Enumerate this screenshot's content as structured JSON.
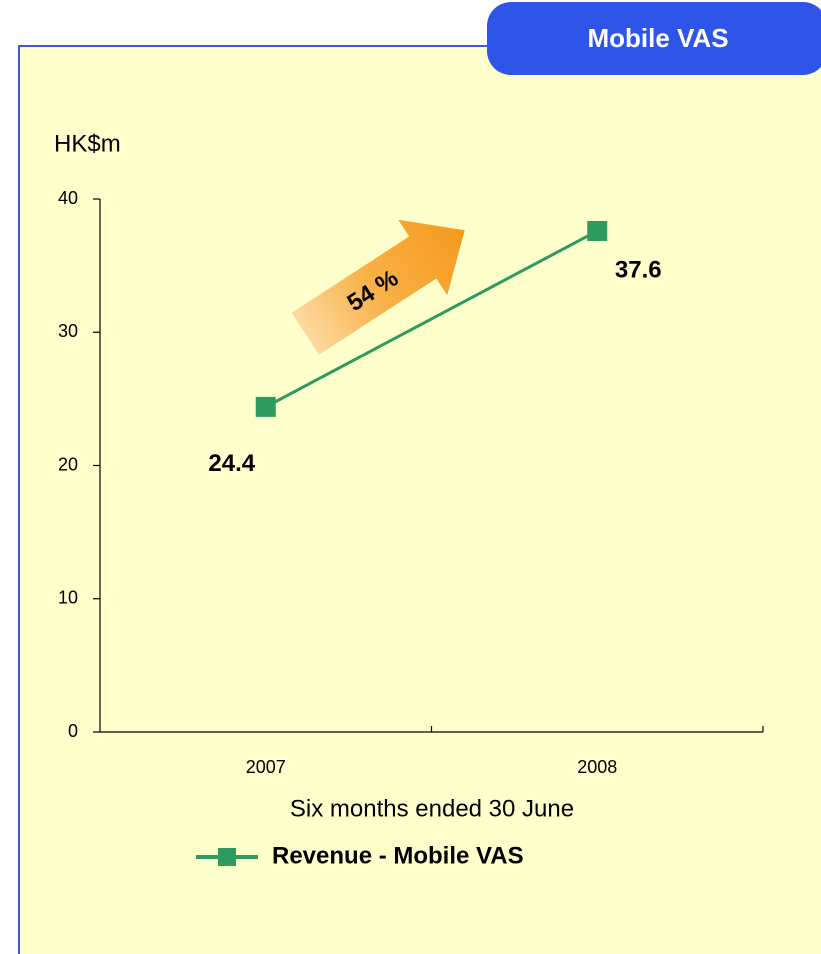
{
  "chart_data": {
    "type": "line",
    "title": "Mobile VAS",
    "ylabel": "HK$m",
    "xlabel": "Six months ended 30 June",
    "annotation": "54 %",
    "categories": [
      "2007",
      "2008"
    ],
    "series": [
      {
        "name": "Revenue - Mobile VAS",
        "color": "#2e9a5e",
        "values": [
          24.4,
          37.6
        ]
      }
    ],
    "ylim": [
      0,
      40
    ],
    "yticks": [
      0,
      10,
      20,
      30,
      40
    ],
    "grid": false,
    "legend": "bottom"
  }
}
